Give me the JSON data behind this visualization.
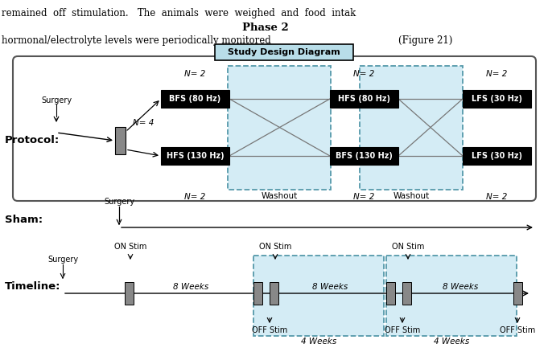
{
  "bg_color": "#ffffff",
  "light_blue": "#d4ecf5",
  "outer_box_color": "#666666",
  "protocol_label": "Protocol:",
  "sham_label": "Sham:",
  "timeline_label": "Timeline:",
  "phase2_text": "Phase 2",
  "subtitle_text": "hormonal/electrolyte levels were periodically monitored",
  "figure_text": "(Figure 21)",
  "study_box_text": "Study Design Diagram",
  "top_line": "remained  off  stimulation.   The  animals  were  weighed  and  food  intak",
  "n4": "N= 4",
  "protocol_boxes_col1": [
    "BFS (80 Hz)",
    "HFS (130 Hz)"
  ],
  "protocol_boxes_col2": [
    "HFS (80 Hz)",
    "BFS (130 Hz)"
  ],
  "protocol_boxes_col3": [
    "LFS (30 Hz)",
    "LFS (30 Hz)"
  ],
  "washout": "Washout",
  "n2": "N= 2",
  "surgery": "Surgery",
  "on_stim": "ON Stim",
  "off_stim": "OFF Stim",
  "weeks8": "8 Weeks",
  "weeks4": "4 Weeks"
}
